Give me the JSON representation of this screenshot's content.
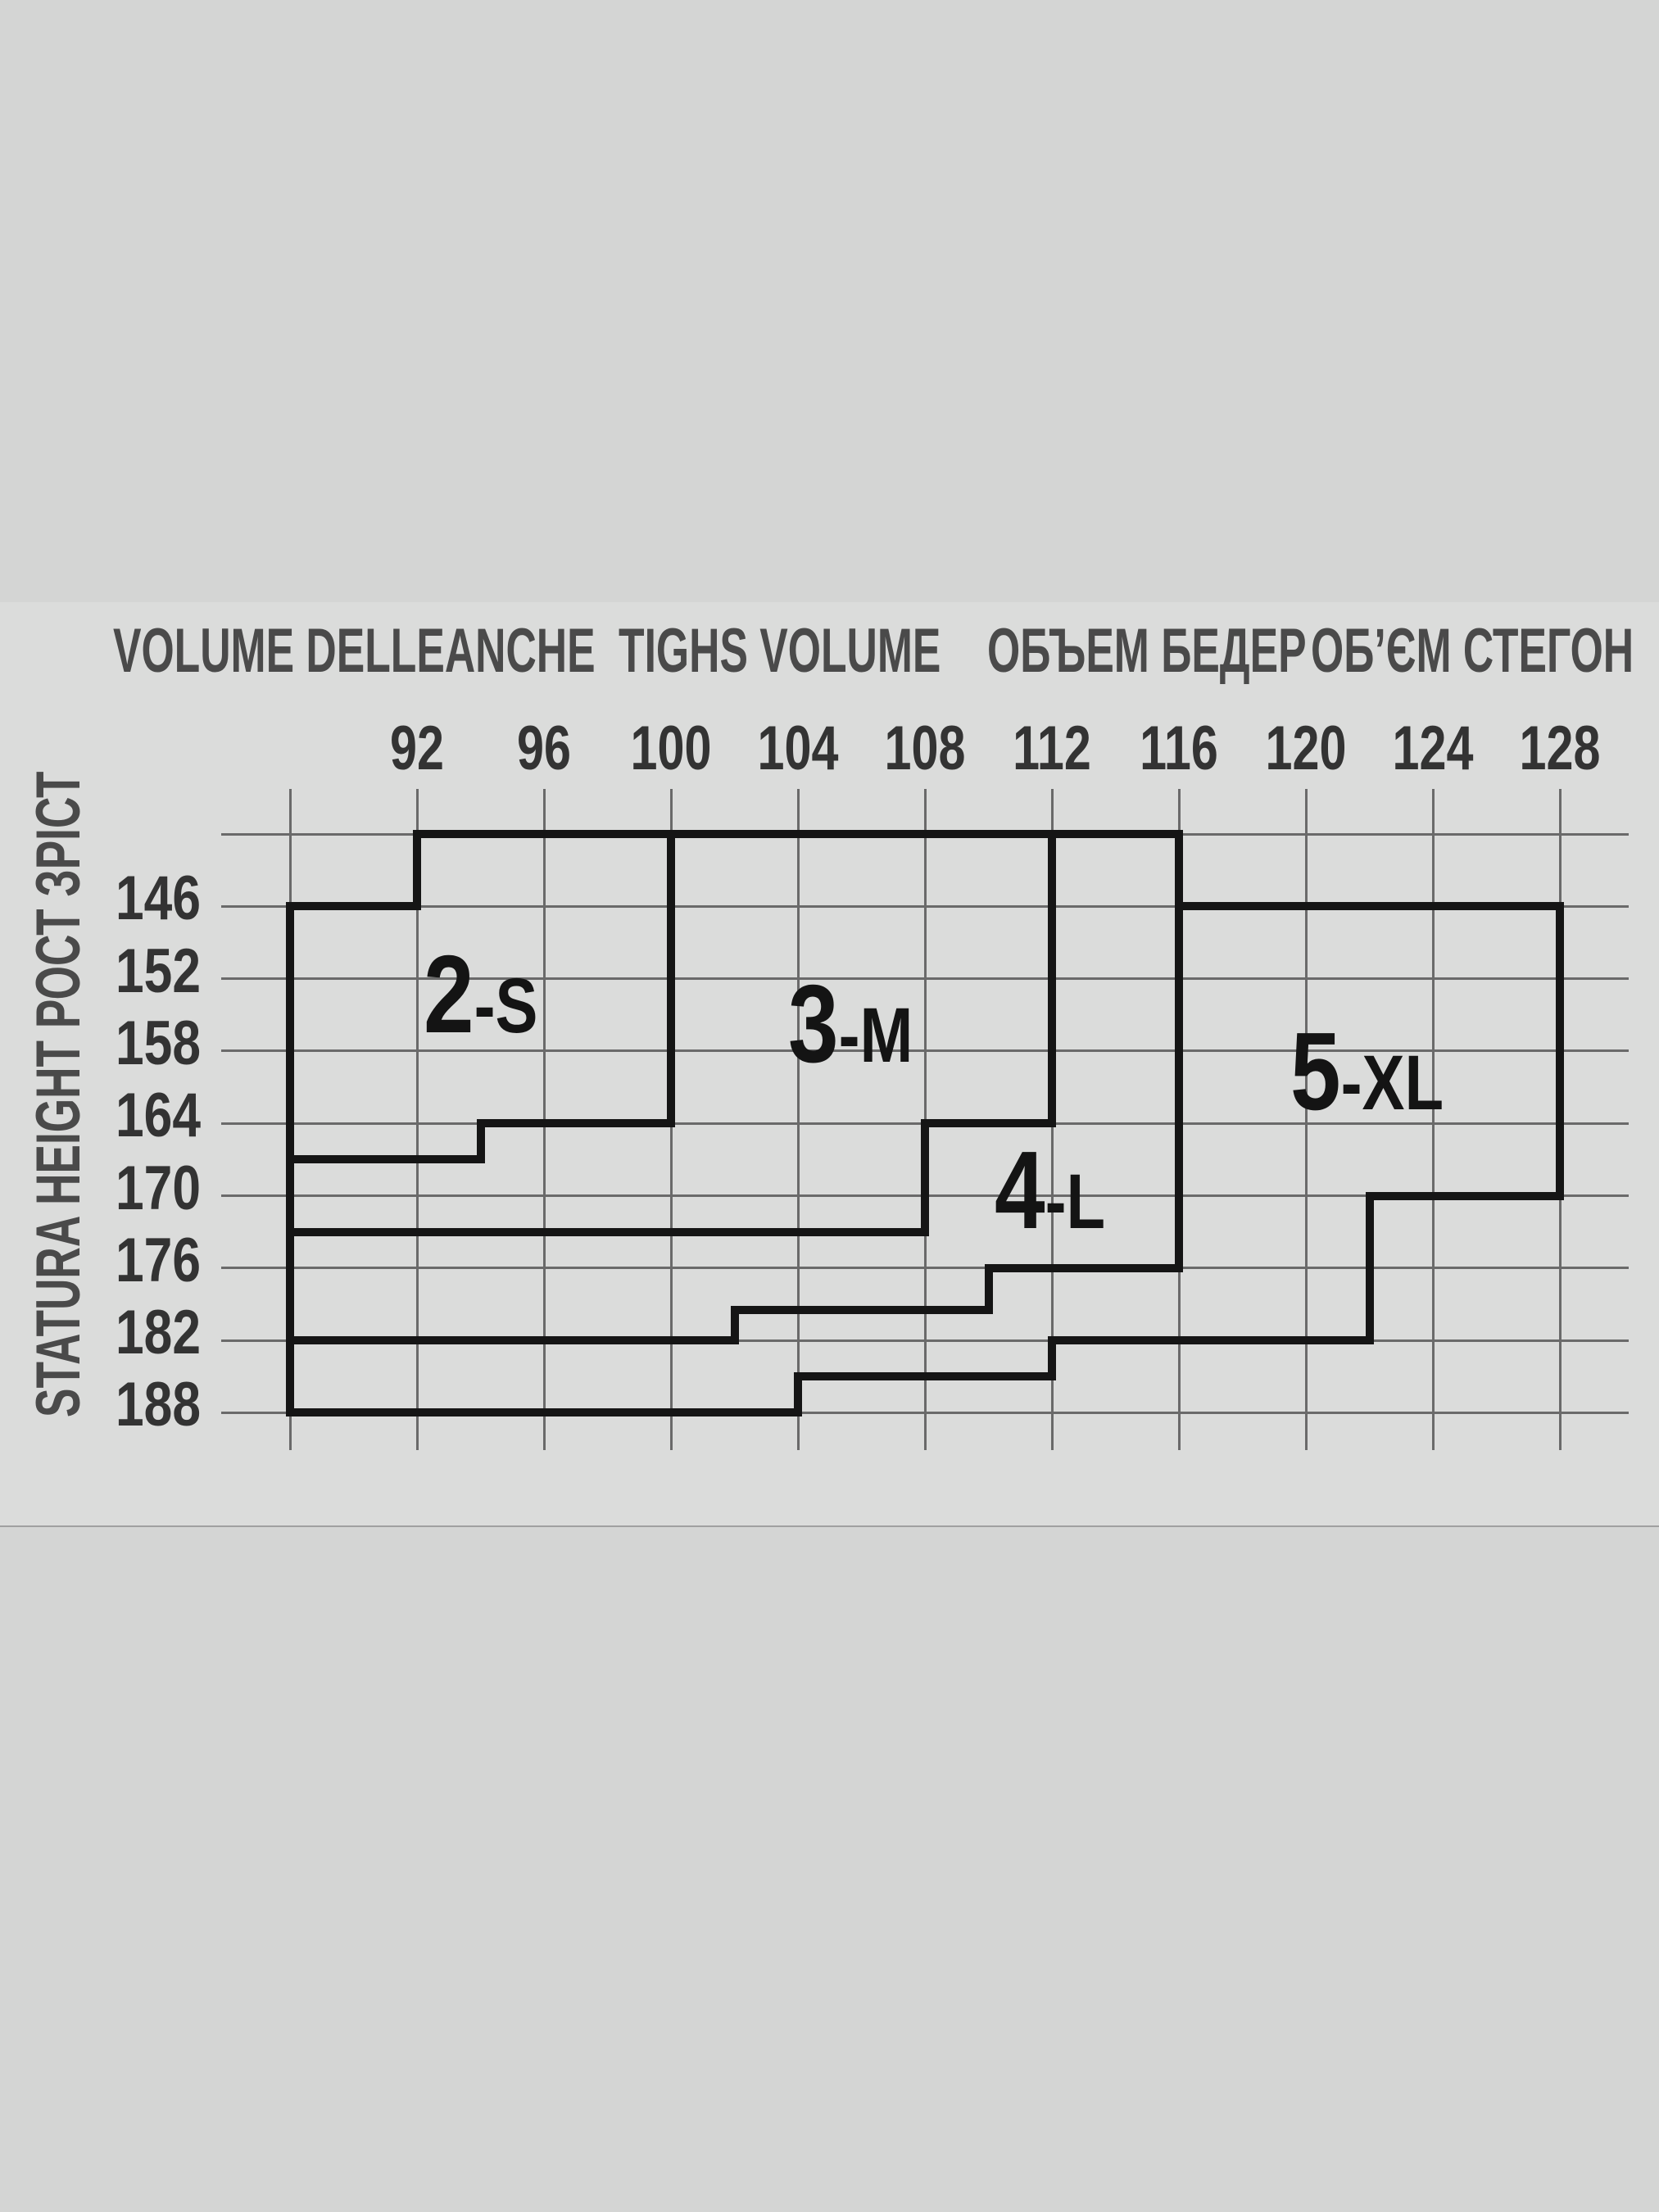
{
  "page": {
    "background": "#d4d5d4",
    "chart_band_background": "#dbdcdb",
    "separator_color": "#a0a0a0"
  },
  "title": {
    "groups": [
      "VOLUME DELLEANCHE",
      "TIGHS VOLUME",
      "ОБЪЕМ БЕДЕР",
      "ОБ’ЄМ СТЕГОН"
    ],
    "color": "#4a4a4a"
  },
  "y_axis_title": "STATURA HEIGHT РОСТ ЗРІСТ",
  "chart_data": {
    "type": "step-region-size-chart",
    "description_visible_text": "Hosiery size chart: hip volume (cm) across the top vs body height (cm) down the side; stepped outlined zones mark sizes 2-S, 3-M, 4-L, 5-XL",
    "x_axis": {
      "tick_labels": [
        "92",
        "96",
        "100",
        "104",
        "108",
        "112",
        "116",
        "120",
        "124",
        "128"
      ],
      "tick_values": [
        92,
        96,
        100,
        104,
        108,
        112,
        116,
        120,
        124,
        128
      ],
      "grid_min": 88,
      "grid_max": 128,
      "grid_step": 4
    },
    "y_axis": {
      "tick_labels": [
        "146",
        "152",
        "158",
        "164",
        "170",
        "176",
        "182",
        "188"
      ],
      "tick_values": [
        146,
        152,
        158,
        164,
        170,
        176,
        182,
        188
      ],
      "grid_min": 140,
      "grid_max": 188,
      "grid_step": 6
    },
    "grid": {
      "shown": true,
      "thin_color": "#6a6a6a",
      "thick_color": "#151515"
    },
    "regions": [
      {
        "name": "2-S",
        "num": "2",
        "suffix": "-S",
        "anchor_hip": 92.2,
        "anchor_height": 157.0
      },
      {
        "name": "3-M",
        "num": "3",
        "suffix": "-M",
        "anchor_hip": 103.7,
        "anchor_height": 159.4
      },
      {
        "name": "4-L",
        "num": "4",
        "suffix": "-L",
        "anchor_hip": 110.2,
        "anchor_height": 173.2
      },
      {
        "name": "5-XL",
        "num": "5",
        "suffix": "-XL",
        "anchor_hip": 119.5,
        "anchor_height": 163.4
      }
    ],
    "boundary_segments_hip_height": [
      [
        92,
        140,
        116,
        140
      ],
      [
        92,
        140,
        92,
        146
      ],
      [
        88,
        146,
        92,
        146
      ],
      [
        88,
        146,
        88,
        188
      ],
      [
        100,
        140,
        100,
        164
      ],
      [
        94,
        164,
        100,
        164
      ],
      [
        94,
        164,
        94,
        167
      ],
      [
        88,
        167,
        94,
        167
      ],
      [
        112,
        140,
        112,
        164
      ],
      [
        108,
        164,
        112,
        164
      ],
      [
        108,
        164,
        108,
        173
      ],
      [
        88,
        173,
        108,
        173
      ],
      [
        116,
        140,
        116,
        176
      ],
      [
        110,
        176,
        116,
        176
      ],
      [
        110,
        176,
        110,
        179.5
      ],
      [
        102,
        179.5,
        110,
        179.5
      ],
      [
        102,
        179.5,
        102,
        182
      ],
      [
        88,
        182,
        102,
        182
      ],
      [
        112,
        182,
        122,
        182
      ],
      [
        112,
        182,
        112,
        185
      ],
      [
        104,
        185,
        112,
        185
      ],
      [
        104,
        185,
        104,
        188
      ],
      [
        88,
        188,
        104,
        188
      ],
      [
        116,
        146,
        128,
        146
      ],
      [
        128,
        146,
        128,
        170
      ],
      [
        122,
        170,
        128,
        170
      ],
      [
        122,
        170,
        122,
        182
      ]
    ]
  }
}
